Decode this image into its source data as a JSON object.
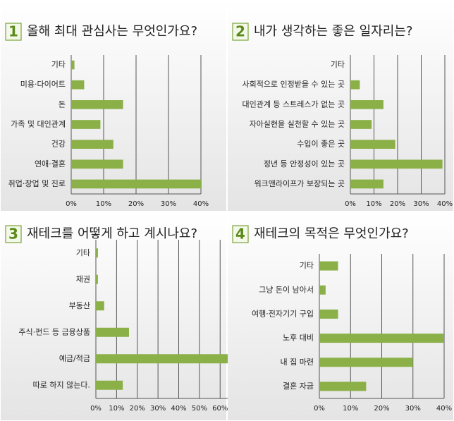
{
  "chart_data": [
    {
      "type": "bar",
      "orientation": "horizontal",
      "badge": "1",
      "title": "올해 최대 관심사는  무엇인가요?",
      "categories": [
        "기타",
        "미용·다이어트",
        "돈",
        "가족 및 대인관계",
        "건강",
        "연애·결혼",
        "취업·창업 및 진로"
      ],
      "values": [
        1,
        4,
        16,
        9,
        13,
        16,
        40
      ],
      "color": "#8cb048",
      "xlim": [
        0,
        40
      ],
      "xticks": [
        {
          "value": 0,
          "label": "0%"
        },
        {
          "value": 10,
          "label": "10%"
        },
        {
          "value": 20,
          "label": "20%"
        },
        {
          "value": 30,
          "label": "30%"
        },
        {
          "value": 40,
          "label": "40%"
        }
      ],
      "grid": true
    },
    {
      "type": "bar",
      "orientation": "horizontal",
      "badge": "2",
      "title": "내가 생각하는 좋은 일자리는?",
      "categories": [
        "기타",
        "사회적으로 인정받을 수 있는 곳",
        "대인관계 등 스트레스가 없는 곳",
        "자아실현을 실천할 수 있는 곳",
        "수입이 좋은 곳",
        "정년 등 안정성이 있는 곳",
        "워크앤라이프가 보장되는 곳"
      ],
      "values": [
        0,
        4,
        14,
        9,
        19,
        39,
        14
      ],
      "color": "#8cb048",
      "xlim": [
        0,
        40
      ],
      "xticks": [
        {
          "value": 0,
          "label": "0%"
        },
        {
          "value": 10,
          "label": "10%"
        },
        {
          "value": 20,
          "label": "20%"
        },
        {
          "value": 30,
          "label": "30%"
        },
        {
          "value": 40,
          "label": "40%"
        }
      ],
      "grid": true
    },
    {
      "type": "bar",
      "orientation": "horizontal",
      "badge": "3",
      "title": "재테크를 어떻게 하고 계시나요?",
      "categories": [
        "기타",
        "채권",
        "부동산",
        "주식·펀드 등 금융상품",
        "예금/적금",
        "따로 하지 않는다."
      ],
      "values": [
        1,
        1,
        4,
        16,
        64,
        13
      ],
      "color": "#8cb048",
      "xlim": [
        0,
        64
      ],
      "xticks": [
        {
          "value": 0,
          "label": "0%"
        },
        {
          "value": 10,
          "label": "10%"
        },
        {
          "value": 20,
          "label": "20%"
        },
        {
          "value": 30,
          "label": "30%"
        },
        {
          "value": 40,
          "label": "40%"
        },
        {
          "value": 50,
          "label": "50%"
        },
        {
          "value": 60,
          "label": "60%"
        }
      ],
      "grid": true
    },
    {
      "type": "bar",
      "orientation": "horizontal",
      "badge": "4",
      "title": "재테크의 목적은 무엇인가요?",
      "categories": [
        "기타",
        "그냥 돈이 남아서",
        "여행·전자기기 구입",
        "노후 대비",
        "내 집 마련",
        "결혼 자금"
      ],
      "values": [
        6,
        2,
        6,
        40,
        30,
        15
      ],
      "color": "#8cb048",
      "xlim": [
        0,
        40
      ],
      "xticks": [
        {
          "value": 0,
          "label": "0%"
        },
        {
          "value": 10,
          "label": "10%"
        },
        {
          "value": 20,
          "label": "20%"
        },
        {
          "value": 30,
          "label": "30%"
        },
        {
          "value": 40,
          "label": "40%"
        }
      ],
      "grid": true
    }
  ]
}
